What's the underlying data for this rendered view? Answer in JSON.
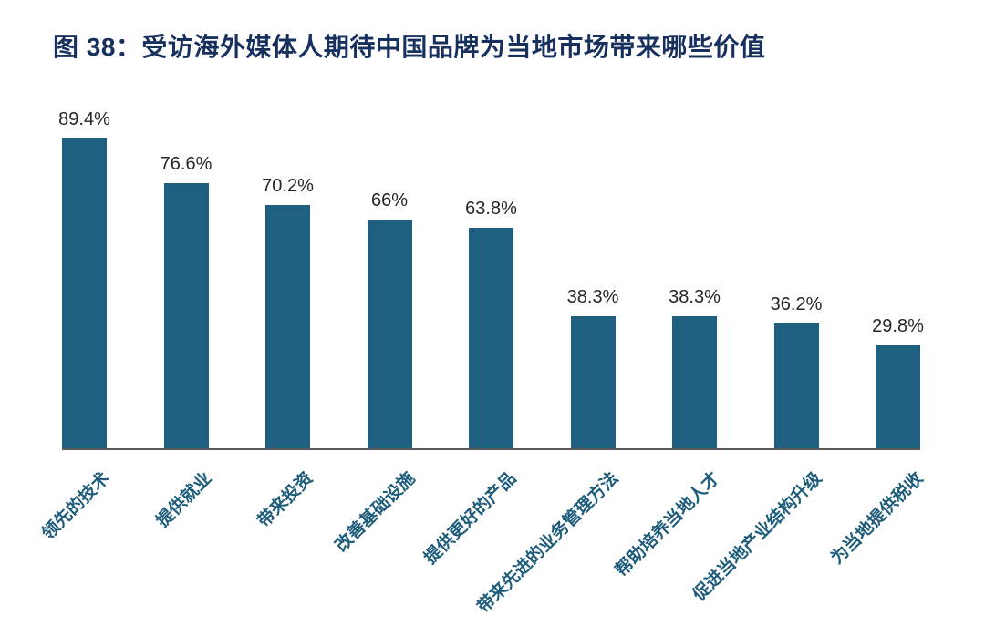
{
  "figure": {
    "title": "图 38：受访海外媒体人期待中国品牌为当地市场带来哪些价值"
  },
  "chart_data": {
    "type": "bar",
    "title": "图 38：受访海外媒体人期待中国品牌为当地市场带来哪些价值",
    "categories": [
      "领先的技术",
      "提供就业",
      "带来投资",
      "改善基础设施",
      "提供更好的产品",
      "带来先进的业务管理方法",
      "帮助培养当地人才",
      "促进当地产业结构升级",
      "为当地提供税收"
    ],
    "values": [
      89.4,
      76.6,
      70.2,
      66,
      63.8,
      38.3,
      38.3,
      36.2,
      29.8
    ],
    "value_labels": [
      "89.4%",
      "76.6%",
      "70.2%",
      "66%",
      "63.8%",
      "38.3%",
      "38.3%",
      "36.2%",
      "29.8%"
    ],
    "xlabel": "",
    "ylabel": "",
    "ylim": [
      0,
      100
    ],
    "grid": false,
    "legend": null,
    "orientation": "vertical",
    "category_label_rotation_deg": 45,
    "colors": {
      "bar": "#1F5F80",
      "category_label": "#1D5C7B",
      "value_label": "#262626",
      "title": "#17305E",
      "axis": "#595959",
      "background": "#FFFFFF"
    }
  }
}
